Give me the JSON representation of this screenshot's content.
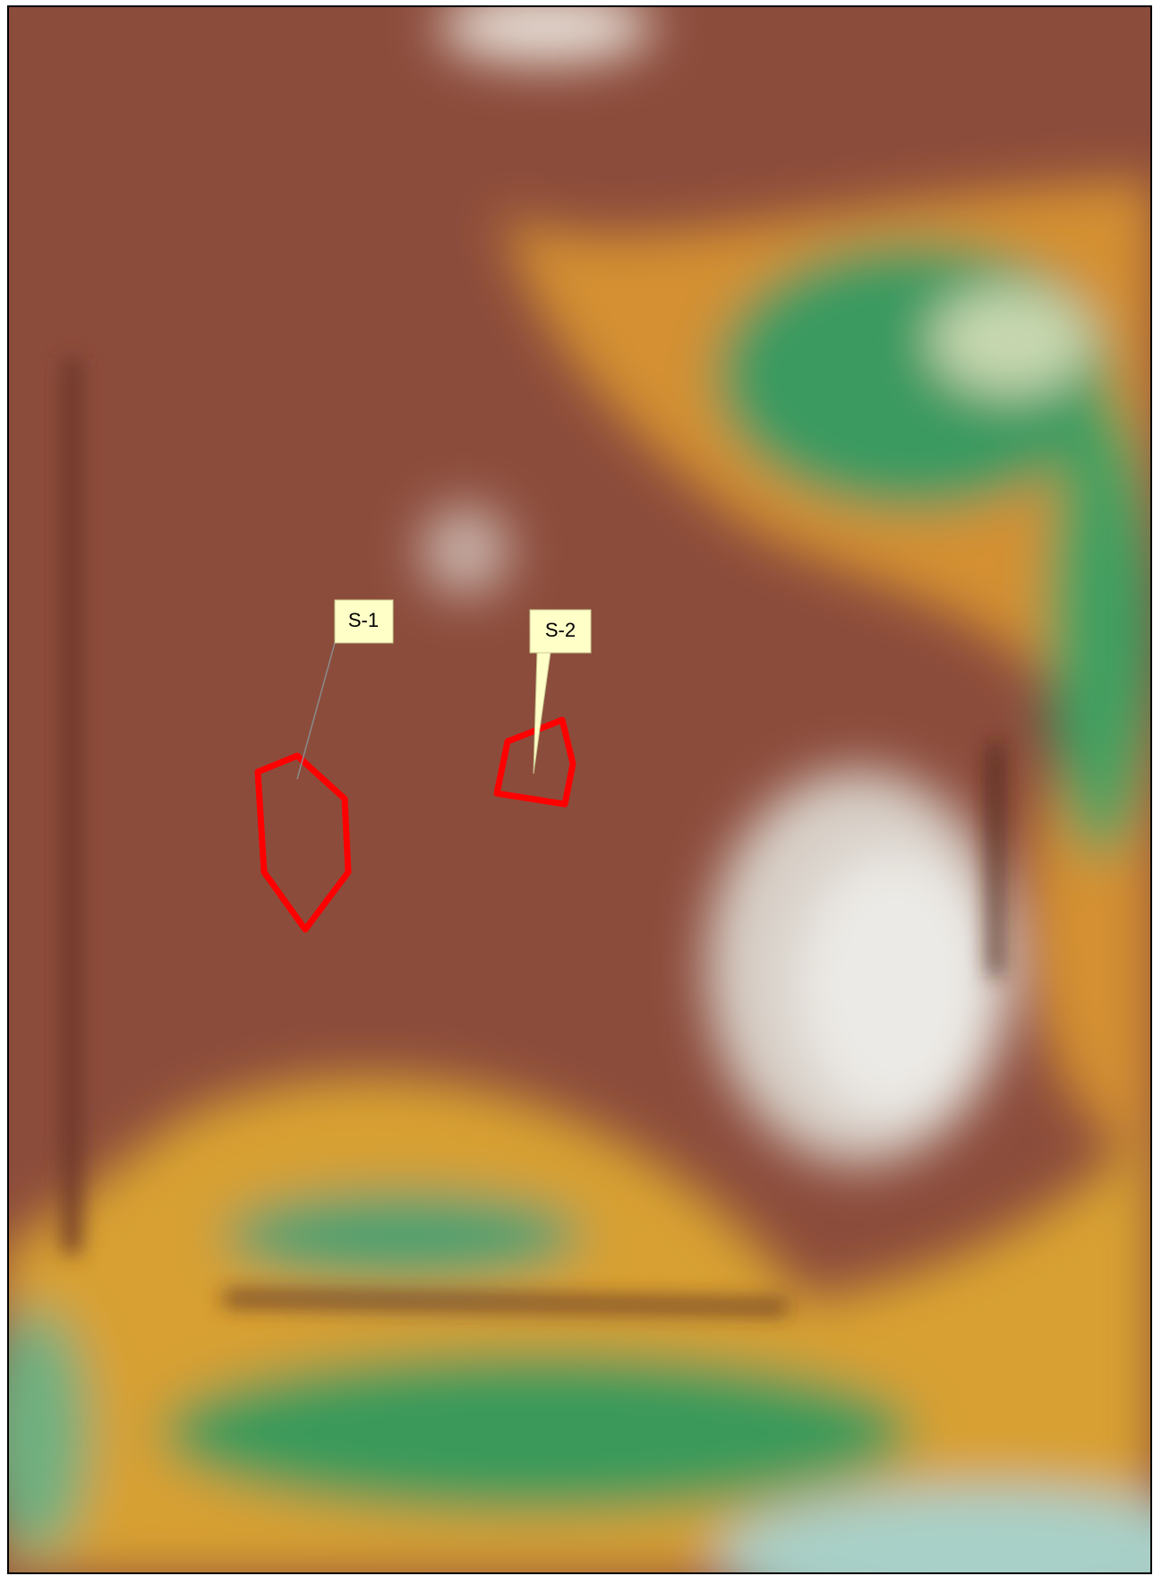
{
  "labels": [
    {
      "text": "S-1"
    },
    {
      "text": "S-2"
    }
  ]
}
